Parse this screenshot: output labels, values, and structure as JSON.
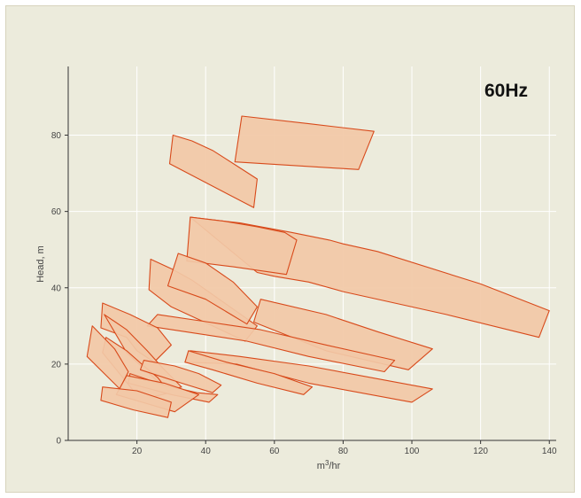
{
  "chart_data": {
    "type": "area",
    "title": "60Hz",
    "xlabel": "m³/hr",
    "xlabel_base": "m",
    "xlabel_sup": "3",
    "xlabel_rest": "/hr",
    "ylabel": "Head, m",
    "xlim": [
      0,
      142
    ],
    "ylim": [
      0,
      98
    ],
    "xticks": [
      20,
      40,
      60,
      80,
      100,
      120,
      140
    ],
    "yticks": [
      0,
      20,
      40,
      60,
      80
    ],
    "grid": true,
    "fill_color": "#f2c8a6",
    "edge_color": "#d84a1b",
    "series": [
      {
        "x": [
          30.5,
          36,
          42,
          49,
          55,
          54,
          29.5
        ],
        "y": [
          80,
          78.5,
          76,
          72,
          68.5,
          61,
          72.5
        ]
      },
      {
        "x": [
          50.5,
          70,
          89,
          84.5,
          48.5
        ],
        "y": [
          85,
          83,
          81,
          71,
          73
        ]
      },
      {
        "x": [
          35.5,
          50,
          65,
          76,
          80,
          90,
          120,
          140,
          137,
          110,
          80,
          70,
          60,
          55
        ],
        "y": [
          58.5,
          57,
          54.5,
          52.5,
          51.5,
          49.5,
          41,
          34,
          27,
          33,
          39,
          41.5,
          43,
          44
        ]
      },
      {
        "x": [
          35.5,
          45,
          55,
          63,
          66.5,
          63.5,
          48,
          34.5
        ],
        "y": [
          58.5,
          57.5,
          56,
          54.5,
          52.5,
          43.5,
          45.5,
          47
        ]
      },
      {
        "x": [
          24,
          30,
          36,
          55,
          51.5,
          42,
          30,
          23.5
        ],
        "y": [
          47.5,
          45,
          42,
          30,
          26,
          30,
          35,
          39.5
        ]
      },
      {
        "x": [
          32,
          40,
          48,
          55,
          52,
          40,
          29
        ],
        "y": [
          49,
          46.5,
          41.5,
          35,
          30.5,
          37,
          40.5
        ]
      },
      {
        "x": [
          56,
          75,
          90,
          106,
          99,
          75,
          54
        ],
        "y": [
          37,
          33,
          28.5,
          24,
          18.5,
          23.5,
          31
        ]
      },
      {
        "x": [
          26,
          41,
          56,
          75,
          95,
          92,
          70,
          52,
          23
        ],
        "y": [
          33,
          31,
          29,
          25,
          21,
          18,
          22,
          26,
          30
        ]
      },
      {
        "x": [
          10,
          18,
          26,
          30,
          25,
          20,
          17,
          9.5
        ],
        "y": [
          36,
          33,
          29.5,
          25,
          20.5,
          23.5,
          27,
          29.5
        ]
      },
      {
        "x": [
          10.5,
          17,
          23,
          27.5,
          33,
          29,
          17
        ],
        "y": [
          33,
          29,
          23.5,
          19,
          14,
          13,
          23
        ]
      },
      {
        "x": [
          11,
          17,
          22,
          26,
          29.5,
          25,
          19,
          10
        ],
        "y": [
          27,
          23.5,
          19.5,
          16.5,
          12.5,
          11.5,
          13,
          23
        ]
      },
      {
        "x": [
          7,
          13.5,
          17.5,
          15,
          5.5
        ],
        "y": [
          30,
          24,
          18,
          13.5,
          22
        ]
      },
      {
        "x": [
          35.5,
          50,
          70,
          106,
          100,
          70,
          49,
          34
        ],
        "y": [
          23.5,
          22,
          19.5,
          13.5,
          10,
          15,
          20,
          20.5
        ]
      },
      {
        "x": [
          35,
          46,
          60,
          71,
          68.5,
          55,
          42,
          34
        ],
        "y": [
          23.5,
          20.5,
          17.5,
          14,
          12,
          15,
          18.5,
          20.5
        ]
      },
      {
        "x": [
          22,
          31,
          38,
          44.5,
          42,
          33,
          21
        ],
        "y": [
          21,
          19.5,
          17.5,
          14.5,
          12.5,
          15,
          18.5
        ]
      },
      {
        "x": [
          18,
          28,
          37.5,
          43.5,
          41,
          30,
          17.5
        ],
        "y": [
          17.5,
          14.5,
          12.5,
          12,
          10,
          12,
          15
        ]
      },
      {
        "x": [
          17,
          28,
          38,
          31,
          14
        ],
        "y": [
          17,
          15,
          12,
          7.5,
          12
        ]
      },
      {
        "x": [
          10,
          20,
          30,
          29,
          19,
          9.5
        ],
        "y": [
          14,
          13,
          10,
          6,
          8,
          10.5
        ]
      }
    ]
  }
}
